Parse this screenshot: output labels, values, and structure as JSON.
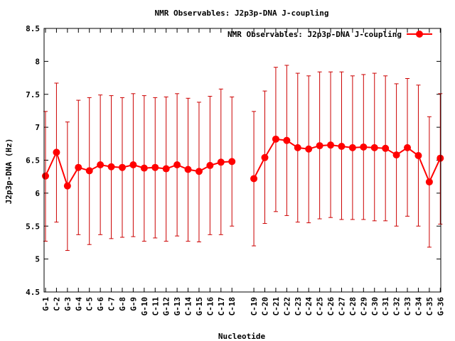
{
  "chart_data": {
    "type": "line",
    "title": "NMR Observables: J2p3p-DNA J-coupling",
    "xlabel": "Nucleotide",
    "ylabel": "J2p3p-DNA (Hz)",
    "ylim": [
      4.5,
      8.5
    ],
    "yticks": [
      "4.5",
      "5",
      "5.5",
      "6",
      "6.5",
      "7",
      "7.5",
      "8",
      "8.5"
    ],
    "ytick_values": [
      4.5,
      5,
      5.5,
      6,
      6.5,
      7,
      7.5,
      8,
      8.5
    ],
    "grid": false,
    "legend_position": "top-right",
    "line_color": "#ff0000",
    "errorbar_color": "#cc0000",
    "series": [
      {
        "name": "NMR Observables: J2p3p-DNA J-coupling"
      }
    ],
    "strands": [
      {
        "categories": [
          "G-1",
          "C-2",
          "G-3",
          "G-4",
          "C-5",
          "G-6",
          "C-7",
          "G-8",
          "G-9",
          "G-10",
          "C-11",
          "G-12",
          "G-13",
          "C-14",
          "G-15",
          "C-16",
          "C-17",
          "C-18"
        ],
        "values": [
          6.26,
          6.62,
          6.11,
          6.39,
          6.34,
          6.43,
          6.4,
          6.39,
          6.43,
          6.38,
          6.39,
          6.37,
          6.43,
          6.36,
          6.33,
          6.42,
          6.47,
          6.48
        ],
        "err_low": [
          5.27,
          5.56,
          5.13,
          5.37,
          5.22,
          5.37,
          5.31,
          5.33,
          5.34,
          5.27,
          5.32,
          5.27,
          5.35,
          5.27,
          5.26,
          5.37,
          5.37,
          5.5
        ],
        "err_high": [
          7.24,
          7.67,
          7.08,
          7.41,
          7.45,
          7.49,
          7.48,
          7.45,
          7.51,
          7.48,
          7.45,
          7.46,
          7.51,
          7.44,
          7.38,
          7.47,
          7.58,
          7.46
        ]
      },
      {
        "categories": [
          "C-19",
          "C-20",
          "C-21",
          "C-22",
          "C-23",
          "C-24",
          "C-25",
          "C-26",
          "C-27",
          "C-28",
          "C-29",
          "C-30",
          "C-31",
          "C-32",
          "C-33",
          "C-34",
          "C-35",
          "G-36"
        ],
        "values": [
          6.22,
          6.54,
          6.82,
          6.8,
          6.69,
          6.67,
          6.72,
          6.73,
          6.71,
          6.69,
          6.7,
          6.69,
          6.68,
          6.58,
          6.69,
          6.57,
          6.17,
          6.53
        ],
        "err_low": [
          5.2,
          5.54,
          5.72,
          5.66,
          5.56,
          5.55,
          5.61,
          5.63,
          5.6,
          5.6,
          5.6,
          5.58,
          5.58,
          5.5,
          5.65,
          5.5,
          5.18,
          5.53
        ],
        "err_high": [
          7.24,
          7.55,
          7.91,
          7.94,
          7.82,
          7.78,
          7.84,
          7.84,
          7.84,
          7.78,
          7.8,
          7.82,
          7.78,
          7.66,
          7.74,
          7.64,
          7.16,
          7.51
        ]
      }
    ]
  }
}
